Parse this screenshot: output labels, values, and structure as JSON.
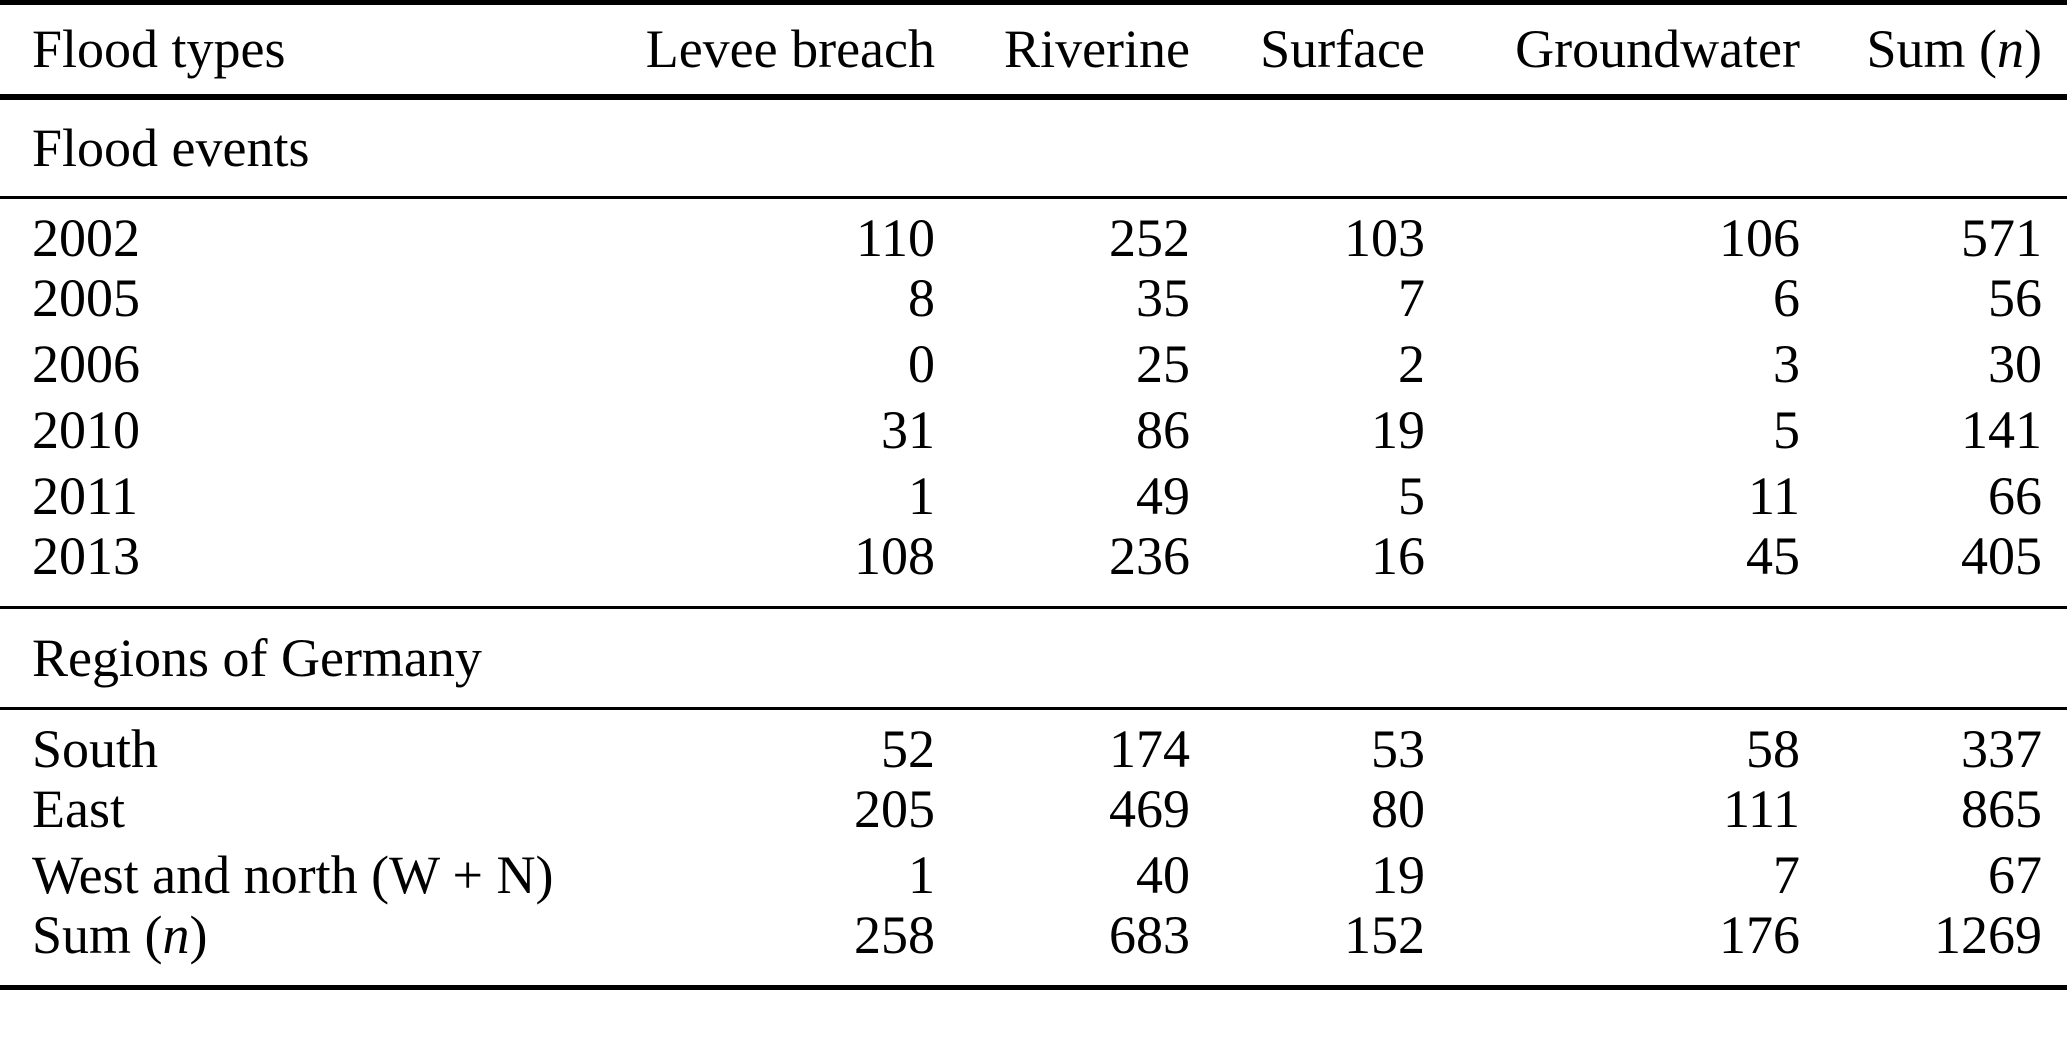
{
  "header": {
    "cols": [
      "Flood types",
      "Levee breach",
      "Riverine",
      "Surface",
      "Groundwater"
    ],
    "sum": {
      "prefix": "Sum (",
      "var": "n",
      "suffix": ")"
    }
  },
  "sections": [
    {
      "title": "Flood events",
      "rows": [
        {
          "label": "2002",
          "values": [
            "110",
            "252",
            "103",
            "106",
            "571"
          ]
        },
        {
          "label": "2005",
          "values": [
            "8",
            "35",
            "7",
            "6",
            "56"
          ]
        },
        {
          "label": "2006",
          "values": [
            "0",
            "25",
            "2",
            "3",
            "30"
          ]
        },
        {
          "label": "2010",
          "values": [
            "31",
            "86",
            "19",
            "5",
            "141"
          ]
        },
        {
          "label": "2011",
          "values": [
            "1",
            "49",
            "5",
            "11",
            "66"
          ]
        },
        {
          "label": "2013",
          "values": [
            "108",
            "236",
            "16",
            "45",
            "405"
          ]
        }
      ]
    },
    {
      "title": "Regions of Germany",
      "rows": [
        {
          "label": "South",
          "values": [
            "52",
            "174",
            "53",
            "58",
            "337"
          ]
        },
        {
          "label": "East",
          "values": [
            "205",
            "469",
            "80",
            "111",
            "865"
          ]
        },
        {
          "label": "West and north (W + N)",
          "values": [
            "1",
            "40",
            "19",
            "7",
            "67"
          ]
        },
        {
          "label_prefix": "Sum (",
          "label_var": "n",
          "label_suffix": ")",
          "values": [
            "258",
            "683",
            "152",
            "176",
            "1269"
          ]
        }
      ]
    }
  ]
}
